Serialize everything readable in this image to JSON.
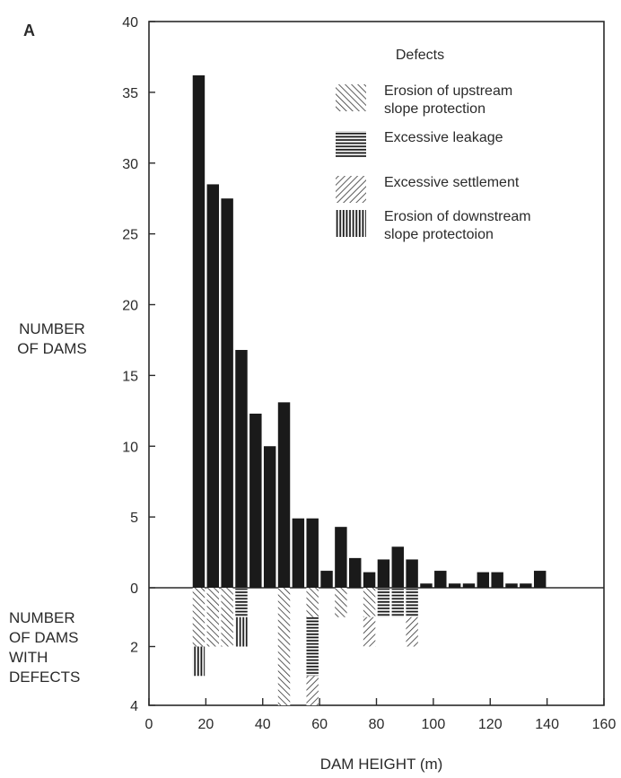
{
  "chart_data": {
    "type": "bar",
    "panel_label": "A",
    "xlabel": "DAM HEIGHT (m)",
    "ylabel_top": [
      "NUMBER",
      "OF DAMS"
    ],
    "ylabel_bottom": [
      "NUMBER",
      "OF DAMS",
      "WITH",
      "DEFECTS"
    ],
    "xlim": [
      0,
      160
    ],
    "x_ticks": [
      0,
      20,
      40,
      60,
      80,
      100,
      120,
      140,
      160
    ],
    "ylim_top": [
      0,
      40
    ],
    "y_ticks_top": [
      0,
      5,
      10,
      15,
      20,
      25,
      30,
      35,
      40
    ],
    "ylim_bottom": [
      0,
      4
    ],
    "y_ticks_bottom": [
      2,
      4
    ],
    "bin_width": 5,
    "dams": {
      "x": [
        15,
        20,
        25,
        30,
        35,
        40,
        45,
        50,
        55,
        60,
        65,
        70,
        75,
        80,
        85,
        90,
        95,
        100,
        105,
        110,
        115,
        120,
        125,
        130,
        135,
        140,
        145,
        150
      ],
      "values": [
        36.2,
        28.5,
        27.5,
        16.8,
        12.3,
        10,
        13.1,
        4.9,
        4.9,
        1.2,
        4.3,
        2.1,
        1.1,
        2,
        2.9,
        2,
        0.3,
        1.2,
        0.3,
        0.3,
        1.1,
        1.1,
        0.3,
        0.3,
        1.2,
        0,
        0,
        0
      ]
    },
    "legend_title": "Defects",
    "defect_series": [
      {
        "name": "Erosion of upstream slope protection",
        "label_lines": [
          "Erosion of upstream",
          "slope protection"
        ],
        "pattern": "diag-right",
        "values": [
          2,
          2,
          2,
          0,
          0,
          0,
          4,
          0,
          1,
          0,
          1,
          0,
          1,
          0,
          0,
          0,
          0,
          0,
          0,
          0,
          0,
          0,
          0,
          0,
          0,
          0,
          0,
          0
        ]
      },
      {
        "name": "Excessive leakage",
        "label_lines": [
          "Excessive leakage"
        ],
        "pattern": "horizontal",
        "values": [
          0,
          0,
          0,
          1,
          0,
          0,
          0,
          0,
          2,
          0,
          0,
          0,
          0,
          1,
          1,
          1,
          0,
          0,
          0,
          0,
          0,
          0,
          0,
          0,
          0,
          0,
          0,
          0
        ]
      },
      {
        "name": "Excessive settlement",
        "label_lines": [
          "Excessive settlement"
        ],
        "pattern": "diag-left",
        "values": [
          0,
          0,
          0,
          0,
          0,
          0,
          0,
          0,
          1,
          0,
          0,
          0,
          1,
          0,
          0,
          1,
          0,
          0,
          0,
          0,
          0,
          0,
          0,
          0,
          0,
          0,
          0,
          0
        ]
      },
      {
        "name": "Erosion of downstream slope protectoion",
        "label_lines": [
          "Erosion of downstream",
          "slope protectoion"
        ],
        "pattern": "vertical",
        "values": [
          1,
          0,
          0,
          1,
          0,
          0,
          0,
          0,
          0,
          0,
          0,
          0,
          0,
          0,
          0,
          0,
          0,
          0,
          0,
          0,
          0,
          0,
          0,
          0,
          0,
          0,
          0,
          0
        ]
      }
    ],
    "bar_color": "#1a1a1a",
    "axis_color": "#2a2a2a",
    "grid": false,
    "legend_position": "top-right"
  }
}
